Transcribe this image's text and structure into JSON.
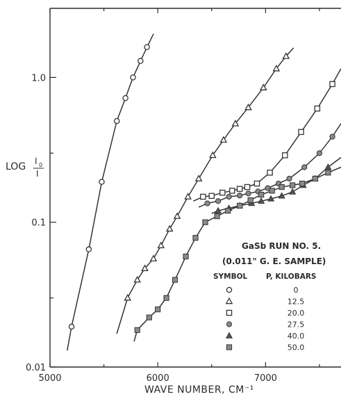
{
  "chart_data": {
    "type": "line",
    "xlabel": "WAVE NUMBER, CM⁻¹",
    "ylabel_main": "LOG",
    "ylabel_num": "I",
    "ylabel_num_sub": "0",
    "ylabel_den": "I",
    "xlim": [
      5000,
      7700
    ],
    "ylim": [
      0.01,
      3.0
    ],
    "y_scale": "log",
    "x_ticks": [
      5000,
      6000,
      7000
    ],
    "x_tick_labels": [
      "5000",
      "6000",
      "7000"
    ],
    "y_ticks": [
      0.01,
      0.1,
      1.0
    ],
    "y_tick_labels": [
      "0.01",
      "0.1",
      "1.0"
    ],
    "legend": {
      "title_line1": "GaSb  RUN NO. 5.",
      "title_line2": "(0.011\" G. E. SAMPLE)",
      "header_symbol": "SYMBOL",
      "header_pressure": "P, KILOBARS",
      "placement": "bottom-right"
    },
    "series": [
      {
        "name": "0",
        "marker": "circle-open",
        "x": [
          5200,
          5360,
          5480,
          5620,
          5700,
          5770,
          5840,
          5900
        ],
        "y": [
          0.019,
          0.065,
          0.19,
          0.5,
          0.72,
          1.0,
          1.3,
          1.62
        ]
      },
      {
        "name": "12.5",
        "marker": "triangle-open",
        "x": [
          5720,
          5810,
          5880,
          5960,
          6030,
          6110,
          6180,
          6280,
          6380,
          6510,
          6610,
          6720,
          6840,
          6980,
          7100,
          7190
        ],
        "y": [
          0.03,
          0.04,
          0.048,
          0.056,
          0.069,
          0.09,
          0.11,
          0.15,
          0.2,
          0.29,
          0.37,
          0.48,
          0.62,
          0.85,
          1.15,
          1.4
        ]
      },
      {
        "name": "20.0",
        "marker": "square-open",
        "x": [
          6420,
          6500,
          6600,
          6690,
          6760,
          6830,
          6920,
          7040,
          7180,
          7330,
          7480,
          7620
        ],
        "y": [
          0.15,
          0.152,
          0.16,
          0.165,
          0.17,
          0.175,
          0.185,
          0.22,
          0.29,
          0.42,
          0.61,
          0.9
        ]
      },
      {
        "name": "27.5",
        "marker": "circle-filled",
        "x": [
          6460,
          6560,
          6660,
          6760,
          6840,
          6930,
          7020,
          7120,
          7220,
          7360,
          7500,
          7620
        ],
        "y": [
          0.135,
          0.14,
          0.15,
          0.153,
          0.158,
          0.163,
          0.172,
          0.185,
          0.2,
          0.24,
          0.3,
          0.39
        ]
      },
      {
        "name": "40.0",
        "marker": "triangle-filled",
        "x": [
          6560,
          6660,
          6760,
          6870,
          6960,
          7050,
          7150,
          7250,
          7350,
          7460,
          7580
        ],
        "y": [
          0.12,
          0.125,
          0.13,
          0.135,
          0.14,
          0.145,
          0.152,
          0.162,
          0.18,
          0.2,
          0.24
        ]
      },
      {
        "name": "50.0",
        "marker": "square-gray",
        "x": [
          5810,
          5920,
          6000,
          6080,
          6160,
          6260,
          6350,
          6440,
          6550,
          6650,
          6760,
          6860,
          6960,
          7060,
          7150,
          7250,
          7340,
          7460,
          7580
        ],
        "y": [
          0.018,
          0.022,
          0.025,
          0.03,
          0.04,
          0.058,
          0.078,
          0.1,
          0.11,
          0.12,
          0.13,
          0.142,
          0.155,
          0.165,
          0.175,
          0.18,
          0.185,
          0.2,
          0.22
        ]
      }
    ]
  }
}
